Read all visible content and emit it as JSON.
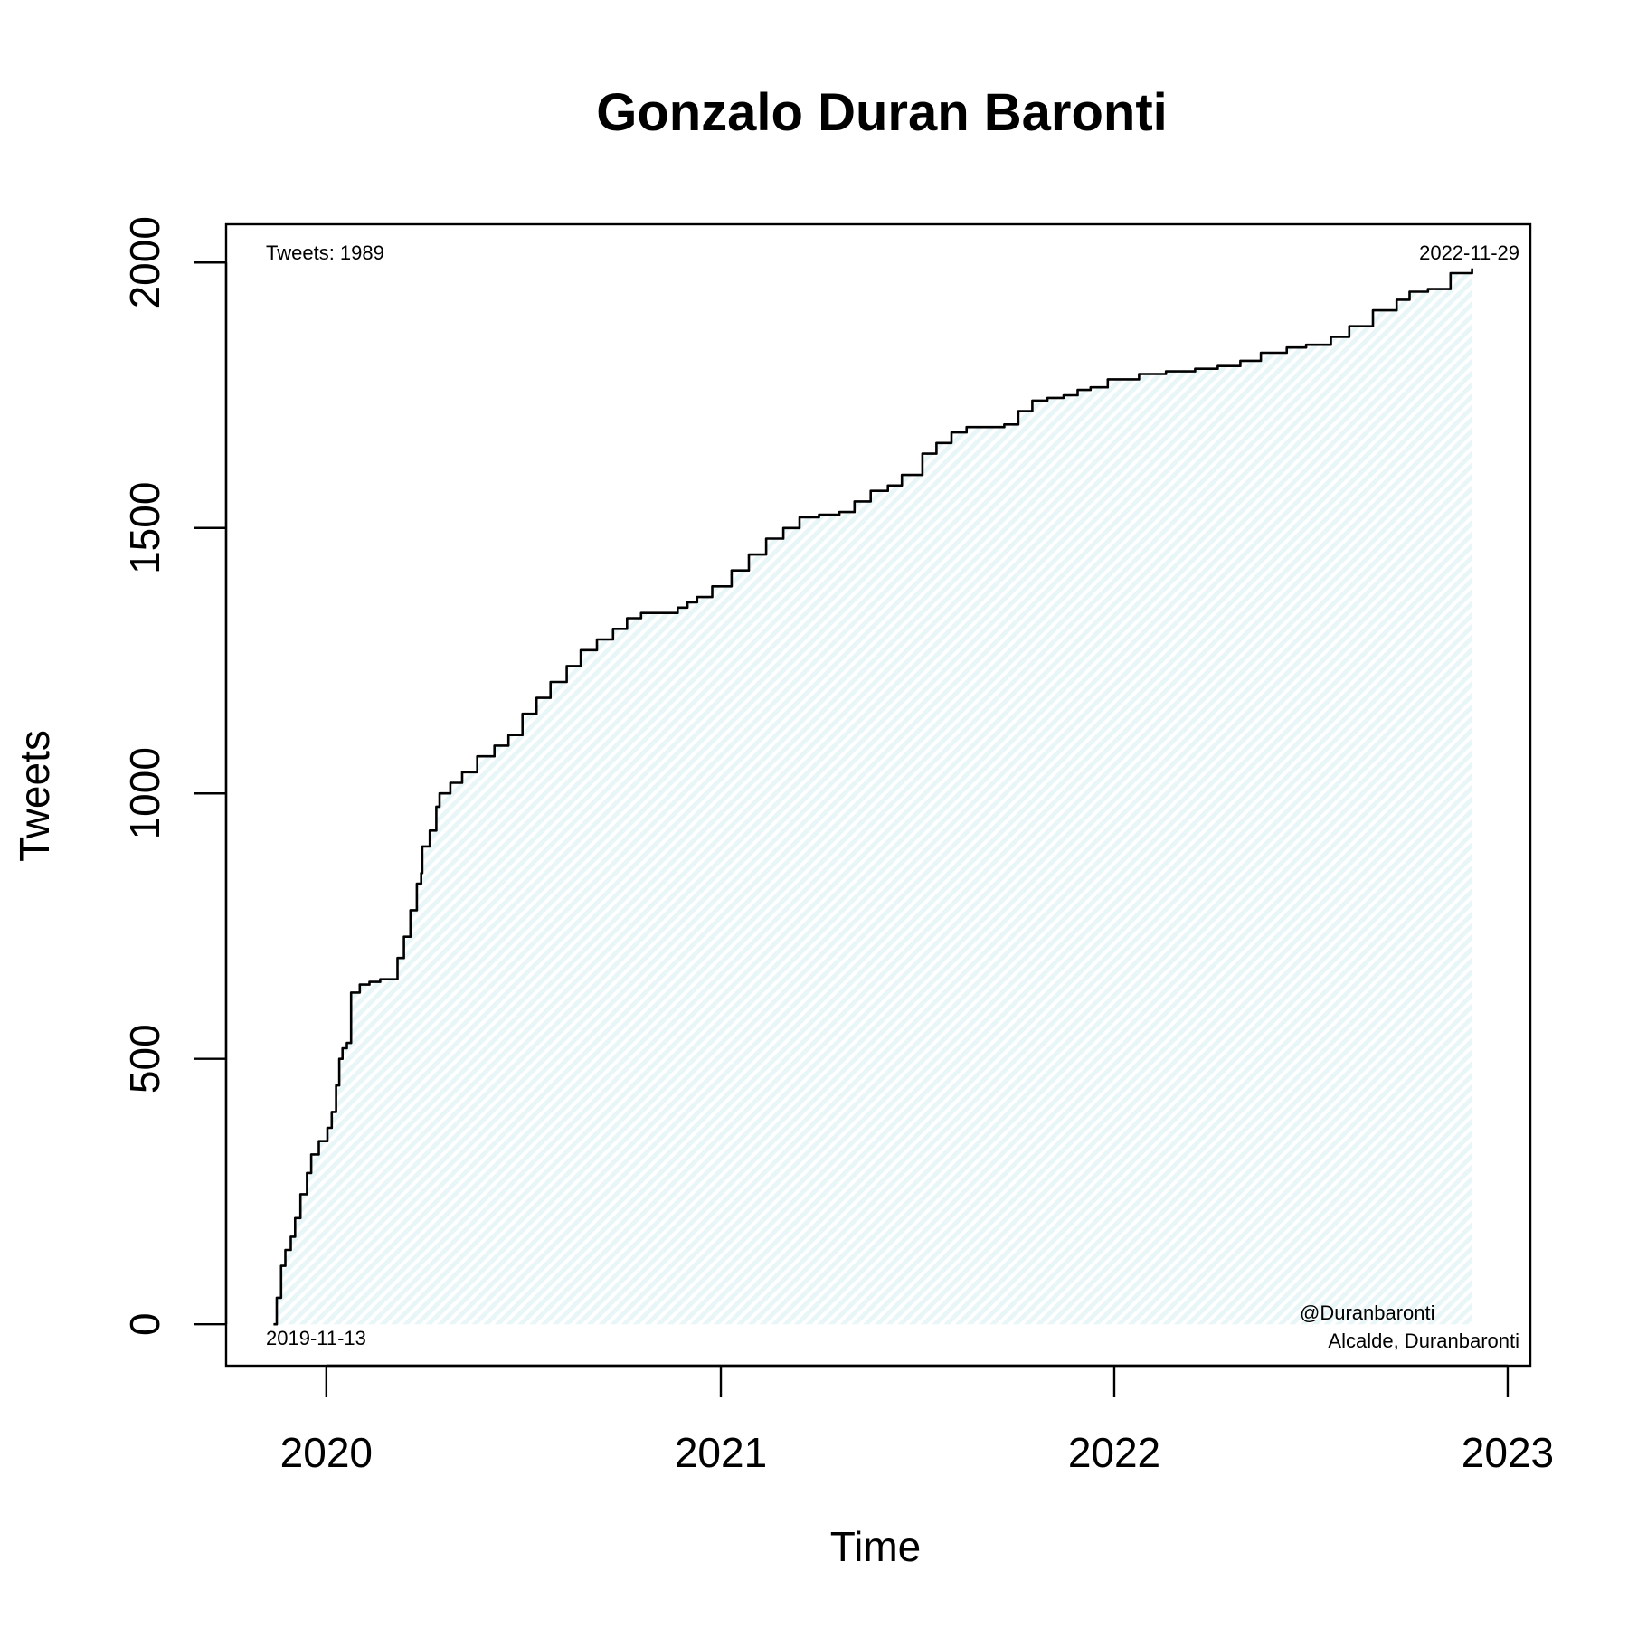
{
  "chart_data": {
    "type": "area",
    "title": "Gonzalo Duran Baronti",
    "xlabel": "Time",
    "ylabel": "Tweets",
    "xlim": [
      "2019-09-30",
      "2023-01-22"
    ],
    "ylim": [
      -78,
      2072
    ],
    "x_ticks": [
      "2020",
      "2021",
      "2022",
      "2023"
    ],
    "x_tick_dates": [
      "2020-01-01",
      "2021-01-01",
      "2022-01-01",
      "2023-01-01"
    ],
    "y_ticks": [
      0,
      500,
      1000,
      1500,
      2000
    ],
    "grid": false,
    "line_color": "#000000",
    "fill_color": "#e8f6f8",
    "annotations": {
      "count": "Tweets: 1989",
      "end_date": "2022-11-29",
      "start_date": "2019-11-13",
      "handle": "@Duranbaronti",
      "description": "Alcalde, Duranbaronti"
    },
    "series": [
      {
        "x": [
          "2019-11-13",
          "2019-11-16",
          "2019-11-20",
          "2019-11-24",
          "2019-11-29",
          "2019-12-03",
          "2019-12-08",
          "2019-12-14",
          "2019-12-18",
          "2019-12-25",
          "2020-01-02",
          "2020-01-06",
          "2020-01-10",
          "2020-01-13",
          "2020-01-16",
          "2020-01-20",
          "2020-01-24",
          "2020-02-01",
          "2020-02-10",
          "2020-02-20",
          "2020-03-02",
          "2020-03-07",
          "2020-03-13",
          "2020-03-19",
          "2020-03-25",
          "2020-03-29",
          "2020-03-30",
          "2020-04-06",
          "2020-04-12",
          "2020-04-15",
          "2020-04-25",
          "2020-05-06",
          "2020-05-20",
          "2020-06-05",
          "2020-06-18",
          "2020-07-01",
          "2020-07-14",
          "2020-07-27",
          "2020-08-11",
          "2020-08-24",
          "2020-09-08",
          "2020-09-23",
          "2020-10-06",
          "2020-10-19",
          "2020-10-30",
          "2020-11-08",
          "2020-11-22",
          "2020-12-01",
          "2020-12-10",
          "2020-12-24",
          "2021-01-11",
          "2021-01-27",
          "2021-02-12",
          "2021-02-28",
          "2021-03-15",
          "2021-04-02",
          "2021-04-21",
          "2021-05-05",
          "2021-05-20",
          "2021-06-05",
          "2021-06-18",
          "2021-06-25",
          "2021-07-07",
          "2021-07-20",
          "2021-08-03",
          "2021-08-17",
          "2021-09-02",
          "2021-09-21",
          "2021-10-04",
          "2021-10-17",
          "2021-10-31",
          "2021-11-15",
          "2021-11-28",
          "2021-12-10",
          "2021-12-26",
          "2022-01-24",
          "2022-02-18",
          "2022-03-17",
          "2022-04-07",
          "2022-04-28",
          "2022-05-17",
          "2022-06-10",
          "2022-06-28",
          "2022-07-07",
          "2022-07-21",
          "2022-08-07",
          "2022-08-29",
          "2022-09-20",
          "2022-10-02",
          "2022-10-19",
          "2022-11-09",
          "2022-11-29"
        ],
        "y": [
          0,
          50,
          110,
          140,
          165,
          200,
          245,
          285,
          320,
          345,
          370,
          400,
          450,
          500,
          520,
          530,
          625,
          640,
          645,
          650,
          650,
          690,
          730,
          780,
          830,
          850,
          900,
          930,
          975,
          1000,
          1020,
          1040,
          1070,
          1090,
          1110,
          1150,
          1180,
          1210,
          1240,
          1270,
          1290,
          1310,
          1330,
          1340,
          1340,
          1340,
          1350,
          1360,
          1370,
          1390,
          1420,
          1450,
          1480,
          1500,
          1520,
          1525,
          1530,
          1550,
          1570,
          1580,
          1600,
          1600,
          1640,
          1660,
          1680,
          1690,
          1690,
          1695,
          1720,
          1740,
          1745,
          1750,
          1760,
          1765,
          1780,
          1790,
          1795,
          1800,
          1805,
          1815,
          1830,
          1840,
          1845,
          1845,
          1860,
          1880,
          1910,
          1930,
          1945,
          1950,
          1980,
          1989
        ]
      }
    ]
  }
}
